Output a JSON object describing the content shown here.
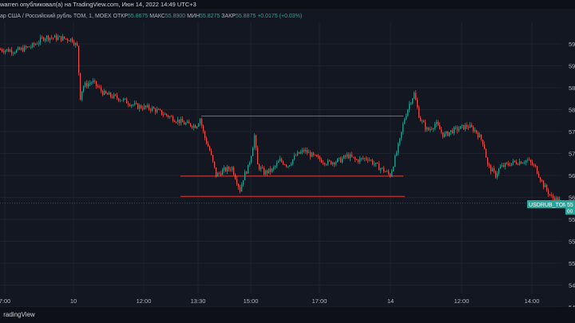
{
  "header": {
    "author_line": "warren опубликовал(а) на TradingView.com, Июн 14, 2022 14:49 UTC+3"
  },
  "symbol": {
    "name": "ар США / Российский рубль TOM, 1, MOEX",
    "open_label": "ОТКР",
    "open_value": "55.8675",
    "high_label": "МАКС",
    "high_value": "55.8900",
    "low_label": "МИН",
    "low_value": "55.8275",
    "close_label": "ЗАКР",
    "close_value": "55.8875",
    "change": "+0.0175 (+0.03%)"
  },
  "price_axis": {
    "currency": "RUB",
    "ticks": [
      "59",
      "59",
      "58",
      "58",
      "57",
      "57",
      "56",
      "56",
      "55",
      "55",
      "55",
      "54",
      "54"
    ]
  },
  "time_axis": {
    "ticks": [
      "7:00",
      "10",
      "12:00",
      "13:30",
      "15:00",
      "17:00",
      "14",
      "12:00",
      "14:00"
    ]
  },
  "price_tag": {
    "symbol": "USDRUB_TOM",
    "value": "55",
    "countdown": "00"
  },
  "footer": {
    "brand": "radingView"
  },
  "colors": {
    "background": "#131722",
    "up": "#26a69a",
    "down": "#ef5350",
    "level_line": "#e53935",
    "grid": "#1e222d",
    "price_tag": "#26a69a"
  },
  "chart_data": {
    "type": "candlestick",
    "symbol": "USDRUB_TOM",
    "interval": "1",
    "exchange": "MOEX",
    "y_axis_range": [
      54.0,
      59.5
    ],
    "horizontal_levels": [
      57.6,
      56.38,
      55.97
    ],
    "price_path": [
      [
        0,
        58.95
      ],
      [
        20,
        58.92
      ],
      [
        40,
        59.02
      ],
      [
        55,
        59.2
      ],
      [
        75,
        59.18
      ],
      [
        90,
        59.15
      ],
      [
        96,
        59.0
      ],
      [
        100,
        57.98
      ],
      [
        103,
        58.2
      ],
      [
        115,
        58.3
      ],
      [
        130,
        58.05
      ],
      [
        150,
        57.95
      ],
      [
        170,
        57.8
      ],
      [
        190,
        57.75
      ],
      [
        210,
        57.6
      ],
      [
        230,
        57.45
      ],
      [
        245,
        57.4
      ],
      [
        250,
        57.55
      ],
      [
        255,
        57.2
      ],
      [
        262,
        56.9
      ],
      [
        270,
        56.4
      ],
      [
        280,
        56.5
      ],
      [
        290,
        56.55
      ],
      [
        300,
        56.1
      ],
      [
        305,
        56.4
      ],
      [
        310,
        56.55
      ],
      [
        315,
        56.9
      ],
      [
        318,
        57.2
      ],
      [
        322,
        56.6
      ],
      [
        330,
        56.45
      ],
      [
        340,
        56.5
      ],
      [
        350,
        56.7
      ],
      [
        360,
        56.6
      ],
      [
        370,
        56.8
      ],
      [
        380,
        56.9
      ],
      [
        395,
        56.75
      ],
      [
        410,
        56.65
      ],
      [
        425,
        56.7
      ],
      [
        435,
        56.8
      ],
      [
        445,
        56.7
      ],
      [
        460,
        56.75
      ],
      [
        470,
        56.6
      ],
      [
        480,
        56.5
      ],
      [
        488,
        56.4
      ],
      [
        495,
        56.8
      ],
      [
        500,
        57.1
      ],
      [
        505,
        57.5
      ],
      [
        512,
        57.85
      ],
      [
        518,
        58.05
      ],
      [
        525,
        57.55
      ],
      [
        535,
        57.3
      ],
      [
        545,
        57.45
      ],
      [
        555,
        57.2
      ],
      [
        565,
        57.3
      ],
      [
        575,
        57.35
      ],
      [
        585,
        57.4
      ],
      [
        595,
        57.3
      ],
      [
        605,
        57.05
      ],
      [
        610,
        56.6
      ],
      [
        620,
        56.4
      ],
      [
        625,
        56.55
      ],
      [
        640,
        56.65
      ],
      [
        660,
        56.7
      ],
      [
        670,
        56.55
      ],
      [
        680,
        56.2
      ],
      [
        690,
        55.95
      ],
      [
        700,
        55.88
      ]
    ]
  }
}
